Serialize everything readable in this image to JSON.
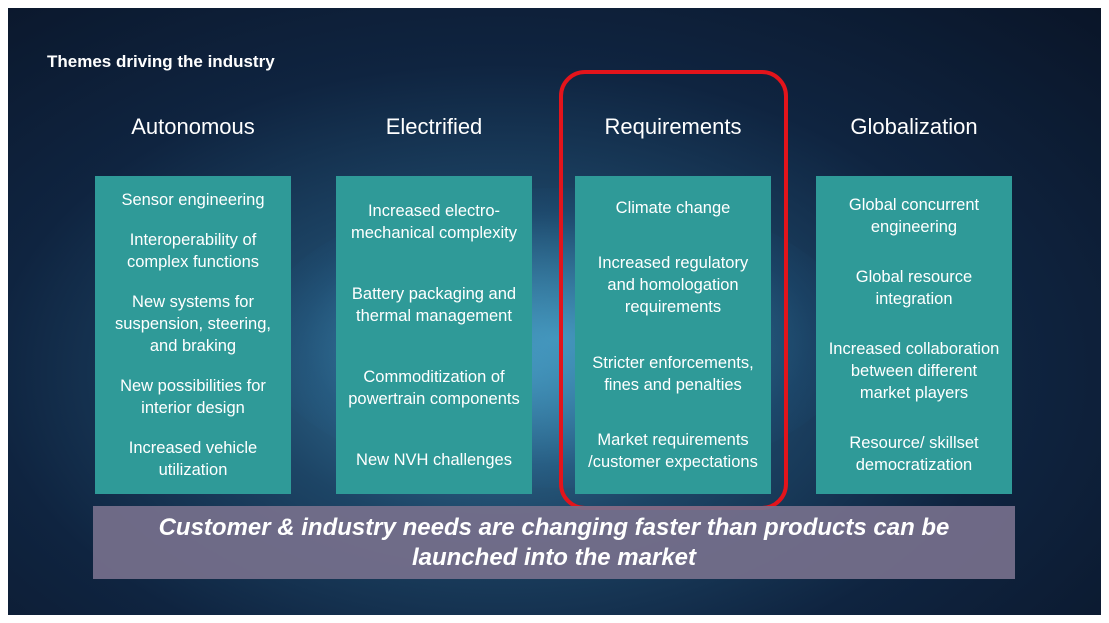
{
  "header": {
    "title": "Themes driving the industry"
  },
  "columns": [
    {
      "heading": "Autonomous",
      "items": [
        "Sensor engineering",
        "Interoperability of complex functions",
        "New systems for suspension, steering, and braking",
        "New possibilities for interior design",
        "Increased vehicle utilization"
      ]
    },
    {
      "heading": "Electrified",
      "items": [
        "Increased electro-mechanical complexity",
        "Battery packaging and thermal management",
        "Commoditization of powertrain components",
        "New NVH challenges"
      ]
    },
    {
      "heading": "Requirements",
      "items": [
        "Climate change",
        "Increased regulatory and homologation requirements",
        "Stricter enforcements, fines and penalties",
        "Market requirements /customer expectations"
      ]
    },
    {
      "heading": "Globalization",
      "items": [
        "Global concurrent engineering",
        "Global resource integration",
        "Increased collaboration between different market players",
        "Resource/ skillset democratization"
      ]
    }
  ],
  "footer": {
    "text": "Customer & industry needs are changing faster than products can be launched into the market"
  }
}
